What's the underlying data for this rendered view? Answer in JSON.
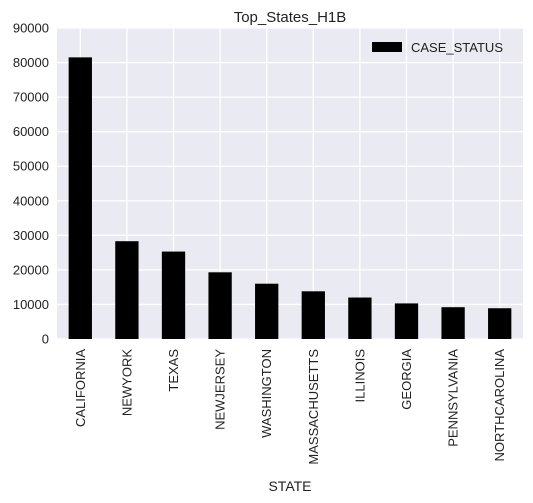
{
  "chart_data": {
    "type": "bar",
    "title": "Top_States_H1B",
    "xlabel": "STATE",
    "ylabel": "",
    "ylim": [
      0,
      90000
    ],
    "yticks": [
      0,
      10000,
      20000,
      30000,
      40000,
      50000,
      60000,
      70000,
      80000,
      90000
    ],
    "grid": true,
    "legend": "top-right",
    "categories": [
      "CALIFORNIA",
      "NEWYORK",
      "TEXAS",
      "NEWJERSEY",
      "WASHINGTON",
      "MASSACHUSETTS",
      "ILLINOIS",
      "GEORGIA",
      "PENNSYLVANIA",
      "NORTHCAROLINA"
    ],
    "series": [
      {
        "name": "CASE_STATUS",
        "color": "#000000",
        "values": [
          81500,
          28300,
          25300,
          19300,
          16000,
          13800,
          12000,
          10300,
          9200,
          8900
        ]
      }
    ],
    "background": "#eaeaf2",
    "grid_color": "#ffffff"
  }
}
